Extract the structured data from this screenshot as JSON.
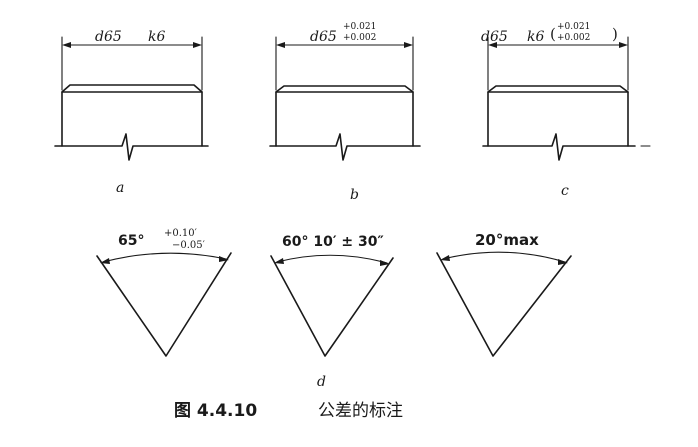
{
  "caption": {
    "number": "图 4.4.10",
    "title": "公差的标注"
  },
  "shaft_views": [
    {
      "label": "a",
      "dimension": "d65",
      "tolerance_class": "k6"
    },
    {
      "label": "b",
      "dimension": "d65",
      "upper_deviation": "+0.021",
      "lower_deviation": "+0.002"
    },
    {
      "label": "c",
      "dimension": "d65",
      "tolerance_class": "k6",
      "open_paren": "(",
      "upper_deviation": "+0.021",
      "lower_deviation": "+0.002",
      "close_paren": ")"
    }
  ],
  "angle_views": {
    "label": "d",
    "items": [
      {
        "angle": "65°",
        "upper_deviation": "+0.10′",
        "lower_deviation": "−0.05′"
      },
      {
        "angle": "60° 10′ ± 30″"
      },
      {
        "angle": "20°max"
      }
    ]
  }
}
